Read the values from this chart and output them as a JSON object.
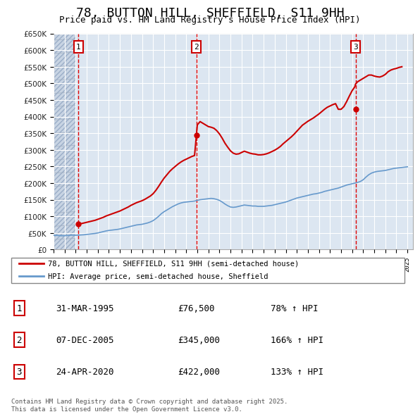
{
  "title": "78, BUTTON HILL, SHEFFIELD, S11 9HH",
  "subtitle": "Price paid vs. HM Land Registry's House Price Index (HPI)",
  "title_fontsize": 13,
  "subtitle_fontsize": 10,
  "ylim": [
    0,
    650000
  ],
  "yticks": [
    0,
    50000,
    100000,
    150000,
    200000,
    250000,
    300000,
    350000,
    400000,
    450000,
    500000,
    550000,
    600000,
    650000
  ],
  "xlim_start": 1993.0,
  "xlim_end": 2025.5,
  "background_color": "#ffffff",
  "chart_bg_color": "#dce6f1",
  "grid_color": "#ffffff",
  "hatch_color": "#c0c8d8",
  "sale_dates": [
    1995.25,
    2005.92,
    2020.31
  ],
  "sale_prices": [
    76500,
    345000,
    422000
  ],
  "sale_labels": [
    "1",
    "2",
    "3"
  ],
  "sale_date_strings": [
    "31-MAR-1995",
    "07-DEC-2005",
    "24-APR-2020"
  ],
  "sale_price_strings": [
    "£76,500",
    "£345,000",
    "£422,000"
  ],
  "sale_hpi_strings": [
    "78% ↑ HPI",
    "166% ↑ HPI",
    "133% ↑ HPI"
  ],
  "legend_line1": "78, BUTTON HILL, SHEFFIELD, S11 9HH (semi-detached house)",
  "legend_line2": "HPI: Average price, semi-detached house, Sheffield",
  "footnote": "Contains HM Land Registry data © Crown copyright and database right 2025.\nThis data is licensed under the Open Government Licence v3.0.",
  "line_color_red": "#cc0000",
  "line_color_blue": "#6699cc",
  "hpi_years": [
    1993.0,
    1993.25,
    1993.5,
    1993.75,
    1994.0,
    1994.25,
    1994.5,
    1994.75,
    1995.0,
    1995.25,
    1995.5,
    1995.75,
    1996.0,
    1996.25,
    1996.5,
    1996.75,
    1997.0,
    1997.25,
    1997.5,
    1997.75,
    1998.0,
    1998.25,
    1998.5,
    1998.75,
    1999.0,
    1999.25,
    1999.5,
    1999.75,
    2000.0,
    2000.25,
    2000.5,
    2000.75,
    2001.0,
    2001.25,
    2001.5,
    2001.75,
    2002.0,
    2002.25,
    2002.5,
    2002.75,
    2003.0,
    2003.25,
    2003.5,
    2003.75,
    2004.0,
    2004.25,
    2004.5,
    2004.75,
    2005.0,
    2005.25,
    2005.5,
    2005.75,
    2006.0,
    2006.25,
    2006.5,
    2006.75,
    2007.0,
    2007.25,
    2007.5,
    2007.75,
    2008.0,
    2008.25,
    2008.5,
    2008.75,
    2009.0,
    2009.25,
    2009.5,
    2009.75,
    2010.0,
    2010.25,
    2010.5,
    2010.75,
    2011.0,
    2011.25,
    2011.5,
    2011.75,
    2012.0,
    2012.25,
    2012.5,
    2012.75,
    2013.0,
    2013.25,
    2013.5,
    2013.75,
    2014.0,
    2014.25,
    2014.5,
    2014.75,
    2015.0,
    2015.25,
    2015.5,
    2015.75,
    2016.0,
    2016.25,
    2016.5,
    2016.75,
    2017.0,
    2017.25,
    2017.5,
    2017.75,
    2018.0,
    2018.25,
    2018.5,
    2018.75,
    2019.0,
    2019.25,
    2019.5,
    2019.75,
    2020.0,
    2020.25,
    2020.5,
    2020.75,
    2021.0,
    2021.25,
    2021.5,
    2021.75,
    2022.0,
    2022.25,
    2022.5,
    2022.75,
    2023.0,
    2023.25,
    2023.5,
    2023.75,
    2024.0,
    2024.25,
    2024.5,
    2024.75,
    2025.0
  ],
  "hpi_values": [
    43000,
    42500,
    42000,
    41500,
    41800,
    42200,
    43000,
    43500,
    43000,
    43500,
    44000,
    44500,
    45500,
    46500,
    47500,
    48500,
    50000,
    52000,
    54000,
    56000,
    57500,
    58500,
    59500,
    60500,
    62000,
    64000,
    66000,
    68000,
    70000,
    72000,
    74000,
    75000,
    76000,
    78000,
    80000,
    83000,
    87000,
    93000,
    100000,
    108000,
    114000,
    119000,
    124000,
    129000,
    133000,
    137000,
    140000,
    142000,
    143000,
    144000,
    145000,
    146000,
    148000,
    150000,
    151000,
    152000,
    153000,
    154000,
    153000,
    151000,
    148000,
    143000,
    137000,
    132000,
    128000,
    127000,
    128000,
    130000,
    132000,
    134000,
    133000,
    132000,
    131000,
    131000,
    130000,
    130000,
    130000,
    131000,
    132000,
    133000,
    135000,
    137000,
    139000,
    141000,
    143000,
    146000,
    149000,
    152000,
    155000,
    157000,
    159000,
    161000,
    163000,
    165000,
    167000,
    168000,
    170000,
    172000,
    175000,
    177000,
    179000,
    181000,
    183000,
    185000,
    188000,
    191000,
    194000,
    196000,
    198000,
    200000,
    202000,
    205000,
    210000,
    218000,
    225000,
    230000,
    233000,
    235000,
    236000,
    237000,
    238000,
    240000,
    242000,
    244000,
    245000,
    246000,
    247000,
    248000,
    249000
  ],
  "property_years": [
    1993.0,
    1993.25,
    1993.5,
    1993.75,
    1994.0,
    1994.25,
    1994.5,
    1994.75,
    1995.0,
    1995.25,
    1995.5,
    1995.75,
    1996.0,
    1996.25,
    1996.5,
    1996.75,
    1997.0,
    1997.25,
    1997.5,
    1997.75,
    1998.0,
    1998.25,
    1998.5,
    1998.75,
    1999.0,
    1999.25,
    1999.5,
    1999.75,
    2000.0,
    2000.25,
    2000.5,
    2000.75,
    2001.0,
    2001.25,
    2001.5,
    2001.75,
    2002.0,
    2002.25,
    2002.5,
    2002.75,
    2003.0,
    2003.25,
    2003.5,
    2003.75,
    2004.0,
    2004.25,
    2004.5,
    2004.75,
    2005.0,
    2005.25,
    2005.5,
    2005.75,
    2005.92,
    2006.0,
    2006.25,
    2006.5,
    2006.75,
    2007.0,
    2007.25,
    2007.5,
    2007.75,
    2008.0,
    2008.25,
    2008.5,
    2008.75,
    2009.0,
    2009.25,
    2009.5,
    2009.75,
    2010.0,
    2010.25,
    2010.5,
    2010.75,
    2011.0,
    2011.25,
    2011.5,
    2011.75,
    2012.0,
    2012.25,
    2012.5,
    2012.75,
    2013.0,
    2013.25,
    2013.5,
    2013.75,
    2014.0,
    2014.25,
    2014.5,
    2014.75,
    2015.0,
    2015.25,
    2015.5,
    2015.75,
    2016.0,
    2016.25,
    2016.5,
    2016.75,
    2017.0,
    2017.25,
    2017.5,
    2017.75,
    2018.0,
    2018.25,
    2018.5,
    2018.75,
    2019.0,
    2019.25,
    2019.5,
    2019.75,
    2020.0,
    2020.25,
    2020.31,
    2020.5,
    2020.75,
    2021.0,
    2021.25,
    2021.5,
    2021.75,
    2022.0,
    2022.25,
    2022.5,
    2022.75,
    2023.0,
    2023.25,
    2023.5,
    2023.75,
    2024.0,
    2024.25,
    2024.5,
    2024.75,
    2025.0
  ],
  "property_values": [
    null,
    null,
    null,
    null,
    null,
    null,
    null,
    null,
    null,
    76500,
    78000,
    80000,
    82000,
    84000,
    86000,
    88000,
    91000,
    94000,
    97000,
    101000,
    104000,
    107000,
    110000,
    113000,
    116000,
    120000,
    124000,
    128000,
    133000,
    137000,
    141000,
    144000,
    147000,
    151000,
    156000,
    161000,
    168000,
    178000,
    190000,
    203000,
    215000,
    225000,
    235000,
    243000,
    250000,
    257000,
    263000,
    268000,
    272000,
    276000,
    280000,
    283000,
    345000,
    375000,
    385000,
    380000,
    375000,
    370000,
    368000,
    365000,
    358000,
    348000,
    335000,
    320000,
    308000,
    297000,
    290000,
    287000,
    288000,
    292000,
    296000,
    293000,
    290000,
    288000,
    287000,
    285000,
    285000,
    286000,
    288000,
    291000,
    295000,
    299000,
    304000,
    310000,
    318000,
    325000,
    332000,
    339000,
    347000,
    356000,
    365000,
    374000,
    380000,
    386000,
    391000,
    396000,
    402000,
    408000,
    415000,
    422000,
    428000,
    432000,
    436000,
    439000,
    422000,
    422000,
    430000,
    445000,
    462000,
    478000,
    490000,
    498000,
    505000,
    510000,
    515000,
    520000,
    525000,
    525000,
    522000,
    520000,
    519000,
    522000,
    527000,
    535000,
    540000,
    543000,
    545000,
    548000,
    550000
  ]
}
